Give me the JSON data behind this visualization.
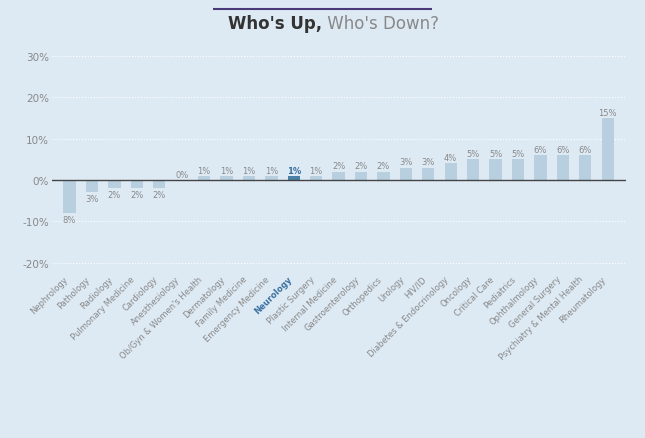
{
  "title_bold": "Who's Up,",
  "title_normal": " Who's Down?",
  "categories": [
    "Nephrology",
    "Pathology",
    "Radiology",
    "Pulmonary Medicine",
    "Cardiology",
    "Anesthesiology",
    "Ob/Gyn & Women's Health",
    "Dermatology",
    "Family Medicine",
    "Emergency Medicine",
    "Neurology",
    "Plastic Surgery",
    "Internal Medicine",
    "Gastroenterology",
    "Orthopedics",
    "Urology",
    "HIV/ID",
    "Diabetes & Endocrinology",
    "Oncology",
    "Critical Care",
    "Pediatrics",
    "Ophthalmology",
    "General Surgery",
    "Psychiatry & Mental Health",
    "Rheumatology"
  ],
  "values": [
    -8,
    -3,
    -2,
    -2,
    -2,
    0,
    1,
    1,
    1,
    1,
    1,
    1,
    2,
    2,
    2,
    3,
    3,
    4,
    5,
    5,
    5,
    6,
    6,
    6,
    15
  ],
  "values_display": [
    "8%",
    "3%",
    "2%",
    "2%",
    "2%",
    "0%",
    "1%",
    "1%",
    "1%",
    "1%",
    "1%",
    "1%",
    "2%",
    "2%",
    "2%",
    "3%",
    "3%",
    "4%",
    "5%",
    "5%",
    "5%",
    "6%",
    "6%",
    "6%",
    "15%"
  ],
  "highlight_index": 10,
  "bar_color": "#b8cfe0",
  "bar_color_highlight": "#4a80a8",
  "background_color": "#ddeaf4",
  "zero_line_color": "#444444",
  "grid_color": "#ffffff",
  "text_color_normal": "#888888",
  "text_color_highlight": "#3a70a0",
  "ylim": [
    -22,
    32
  ],
  "yticks": [
    -20,
    -10,
    0,
    10,
    20,
    30
  ],
  "title_color_bold": "#333333",
  "title_color_normal": "#888888",
  "title_underline_color": "#4a3a7a"
}
